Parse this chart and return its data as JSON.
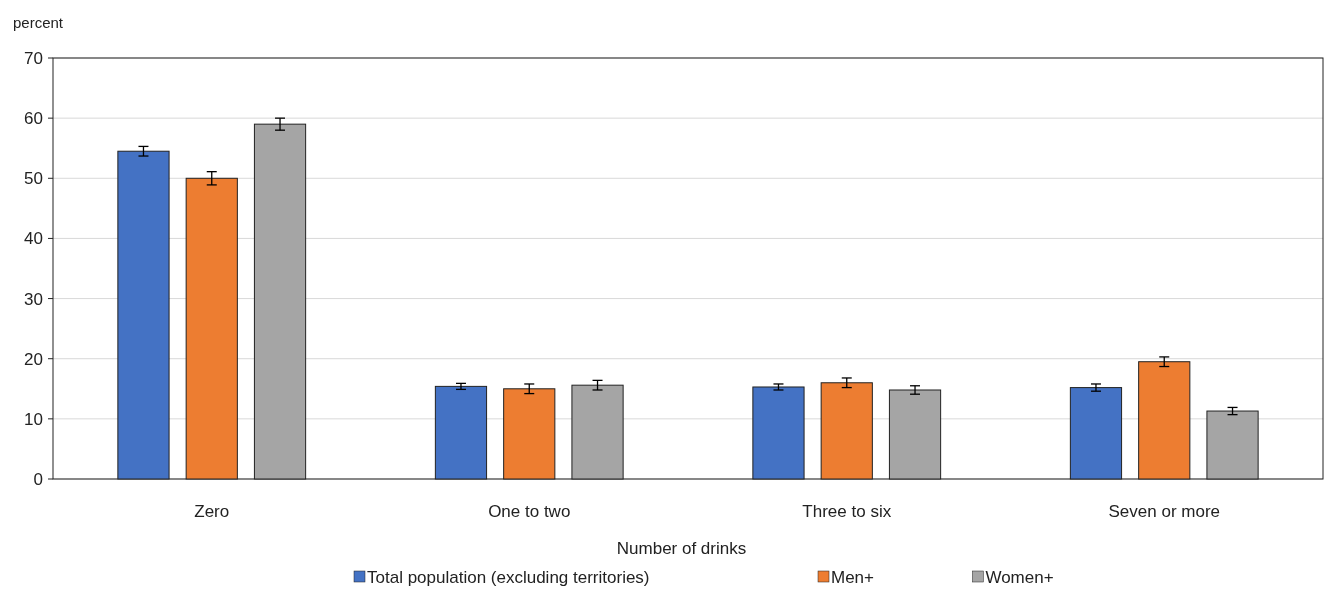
{
  "chart_data": {
    "type": "bar",
    "ylabel": "percent",
    "xlabel": "Number of drinks",
    "categories": [
      "Zero",
      "One to two",
      "Three to six",
      "Seven or more"
    ],
    "series": [
      {
        "name": "Total population (excluding territories)",
        "color": "#4472c4",
        "values": [
          54.5,
          15.4,
          15.3,
          15.2
        ],
        "errors": [
          0.8,
          0.5,
          0.5,
          0.6
        ]
      },
      {
        "name": "Men+",
        "color": "#ed7d31",
        "values": [
          50.0,
          15.0,
          16.0,
          19.5
        ],
        "errors": [
          1.1,
          0.8,
          0.8,
          0.8
        ]
      },
      {
        "name": "Women+",
        "color": "#a5a5a5",
        "values": [
          59.0,
          15.6,
          14.8,
          11.3
        ],
        "errors": [
          1.0,
          0.8,
          0.7,
          0.6
        ]
      }
    ],
    "ylim": [
      0,
      70
    ],
    "yticks": [
      0,
      10,
      20,
      30,
      40,
      50,
      60,
      70
    ],
    "grid": "y",
    "legend": "bottom"
  }
}
